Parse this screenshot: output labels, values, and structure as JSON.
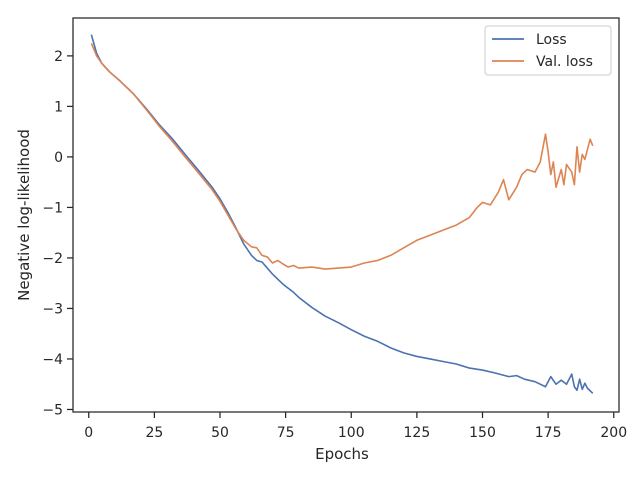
{
  "chart_data": {
    "type": "line",
    "title": "",
    "xlabel": "Epochs",
    "ylabel": "Negative log-likelihood",
    "xlim": [
      -6,
      202
    ],
    "ylim": [
      -5.05,
      2.75
    ],
    "xticks": [
      0,
      25,
      50,
      75,
      100,
      125,
      150,
      175,
      200
    ],
    "yticks": [
      2,
      1,
      0,
      -1,
      -2,
      -3,
      -4,
      -5
    ],
    "xtick_labels": [
      "0",
      "25",
      "50",
      "75",
      "100",
      "125",
      "150",
      "175",
      "200"
    ],
    "ytick_labels": [
      "2",
      "1",
      "0",
      "−1",
      "−2",
      "−3",
      "−4",
      "−5"
    ],
    "grid": false,
    "legend_position": "upper right",
    "series": [
      {
        "name": "Loss",
        "color": "#4c72b0",
        "x": [
          1,
          3,
          5,
          8,
          12,
          17,
          22,
          27,
          32,
          37,
          42,
          47,
          50,
          53,
          56,
          59,
          62,
          64,
          66,
          68,
          70,
          72,
          74,
          76,
          78,
          80,
          85,
          90,
          95,
          100,
          105,
          110,
          115,
          120,
          125,
          130,
          135,
          140,
          145,
          150,
          155,
          160,
          163,
          166,
          170,
          174,
          176,
          178,
          180,
          182,
          184,
          185,
          186,
          187,
          188,
          189,
          190,
          192
        ],
        "y": [
          2.42,
          2.05,
          1.85,
          1.68,
          1.5,
          1.25,
          0.95,
          0.63,
          0.35,
          0.03,
          -0.28,
          -0.6,
          -0.83,
          -1.1,
          -1.4,
          -1.72,
          -1.95,
          -2.05,
          -2.08,
          -2.2,
          -2.32,
          -2.42,
          -2.52,
          -2.6,
          -2.68,
          -2.78,
          -2.98,
          -3.15,
          -3.28,
          -3.42,
          -3.55,
          -3.65,
          -3.78,
          -3.88,
          -3.95,
          -4.0,
          -4.05,
          -4.1,
          -4.18,
          -4.22,
          -4.28,
          -4.35,
          -4.33,
          -4.4,
          -4.45,
          -4.55,
          -4.35,
          -4.5,
          -4.42,
          -4.5,
          -4.3,
          -4.55,
          -4.62,
          -4.4,
          -4.6,
          -4.48,
          -4.58,
          -4.68
        ]
      },
      {
        "name": "Val. loss",
        "color": "#dd8452",
        "x": [
          1,
          3,
          5,
          8,
          12,
          17,
          22,
          27,
          32,
          37,
          42,
          47,
          50,
          53,
          56,
          59,
          62,
          64,
          66,
          68,
          70,
          72,
          74,
          76,
          78,
          80,
          85,
          90,
          95,
          100,
          105,
          110,
          115,
          120,
          125,
          130,
          135,
          140,
          145,
          148,
          150,
          153,
          156,
          158,
          160,
          163,
          165,
          167,
          170,
          172,
          174,
          175,
          176,
          177,
          178,
          180,
          181,
          182,
          184,
          185,
          186,
          187,
          188,
          189,
          190,
          191,
          192
        ],
        "y": [
          2.25,
          2.0,
          1.85,
          1.68,
          1.5,
          1.25,
          0.93,
          0.6,
          0.3,
          -0.02,
          -0.33,
          -0.65,
          -0.88,
          -1.15,
          -1.42,
          -1.65,
          -1.78,
          -1.8,
          -1.95,
          -1.98,
          -2.1,
          -2.05,
          -2.12,
          -2.18,
          -2.15,
          -2.2,
          -2.18,
          -2.22,
          -2.2,
          -2.18,
          -2.1,
          -2.05,
          -1.95,
          -1.8,
          -1.65,
          -1.55,
          -1.45,
          -1.35,
          -1.2,
          -1.0,
          -0.9,
          -0.95,
          -0.7,
          -0.45,
          -0.85,
          -0.6,
          -0.35,
          -0.25,
          -0.3,
          -0.1,
          0.45,
          0.1,
          -0.35,
          -0.1,
          -0.6,
          -0.25,
          -0.55,
          -0.15,
          -0.3,
          -0.55,
          0.2,
          -0.3,
          0.05,
          -0.05,
          0.15,
          0.35,
          0.22
        ]
      }
    ]
  }
}
